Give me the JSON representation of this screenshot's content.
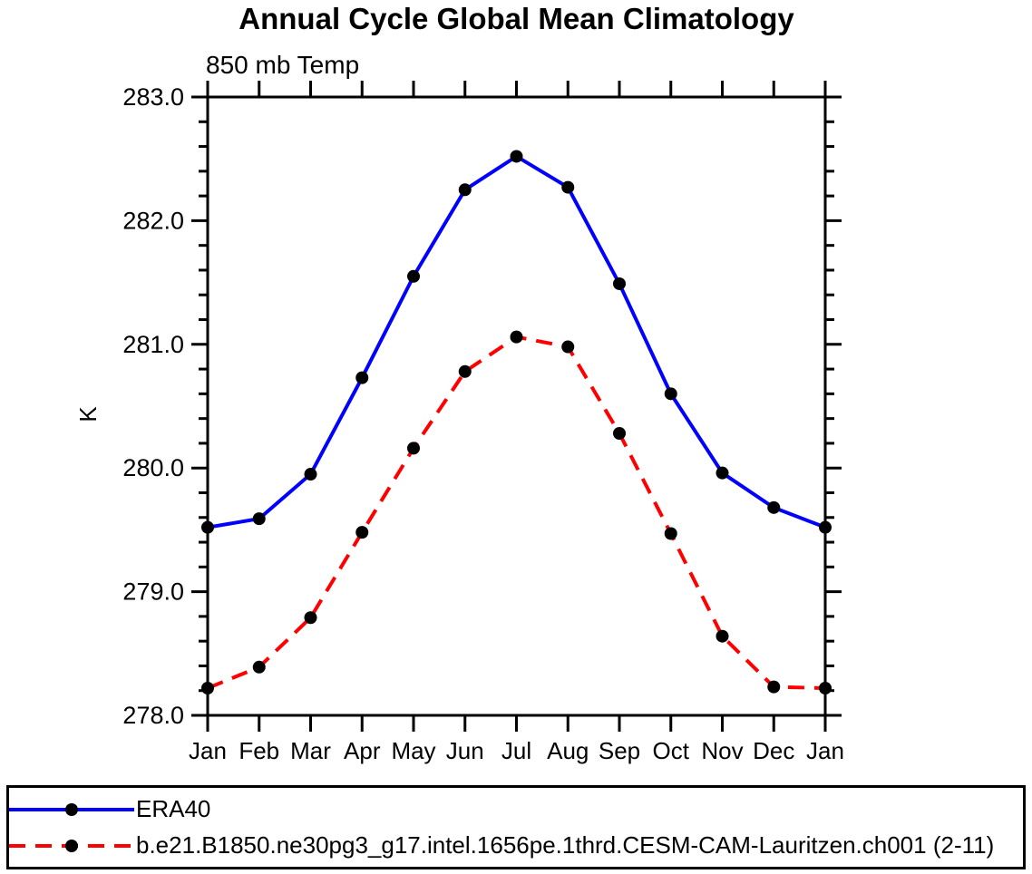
{
  "chart_data": {
    "type": "line",
    "title": "Annual Cycle Global Mean Climatology",
    "subtitle": "850 mb Temp",
    "ylabel": "K",
    "x_categories": [
      "Jan",
      "Feb",
      "Mar",
      "Apr",
      "May",
      "Jun",
      "Jul",
      "Aug",
      "Sep",
      "Oct",
      "Nov",
      "Dec",
      "Jan"
    ],
    "ylim": [
      278.0,
      283.0
    ],
    "ytick_labels": [
      "278.0",
      "279.0",
      "280.0",
      "281.0",
      "282.0",
      "283.0"
    ],
    "ytick_values": [
      278.0,
      279.0,
      280.0,
      281.0,
      282.0,
      283.0
    ],
    "ytick_minor_step": 0.2,
    "grid": false,
    "legend_position": "bottom",
    "axis_color": "#000000",
    "marker": "filled-circle",
    "marker_color": "#000000",
    "series": [
      {
        "name": "ERA40",
        "color": "#0000ff",
        "line_style": "solid",
        "values": [
          279.52,
          279.59,
          279.95,
          280.73,
          281.55,
          282.25,
          282.52,
          282.27,
          281.49,
          280.6,
          279.96,
          279.68,
          279.52
        ]
      },
      {
        "name": "b.e21.B1850.ne30pg3_g17.intel.1656pe.1thrd.CESM-CAM-Lauritzen.ch001 (2-11)",
        "color": "#ff0000",
        "line_style": "dashed",
        "values": [
          278.22,
          278.39,
          278.79,
          279.48,
          280.16,
          280.78,
          281.06,
          280.98,
          280.28,
          279.47,
          278.64,
          278.23,
          278.22
        ]
      }
    ]
  }
}
